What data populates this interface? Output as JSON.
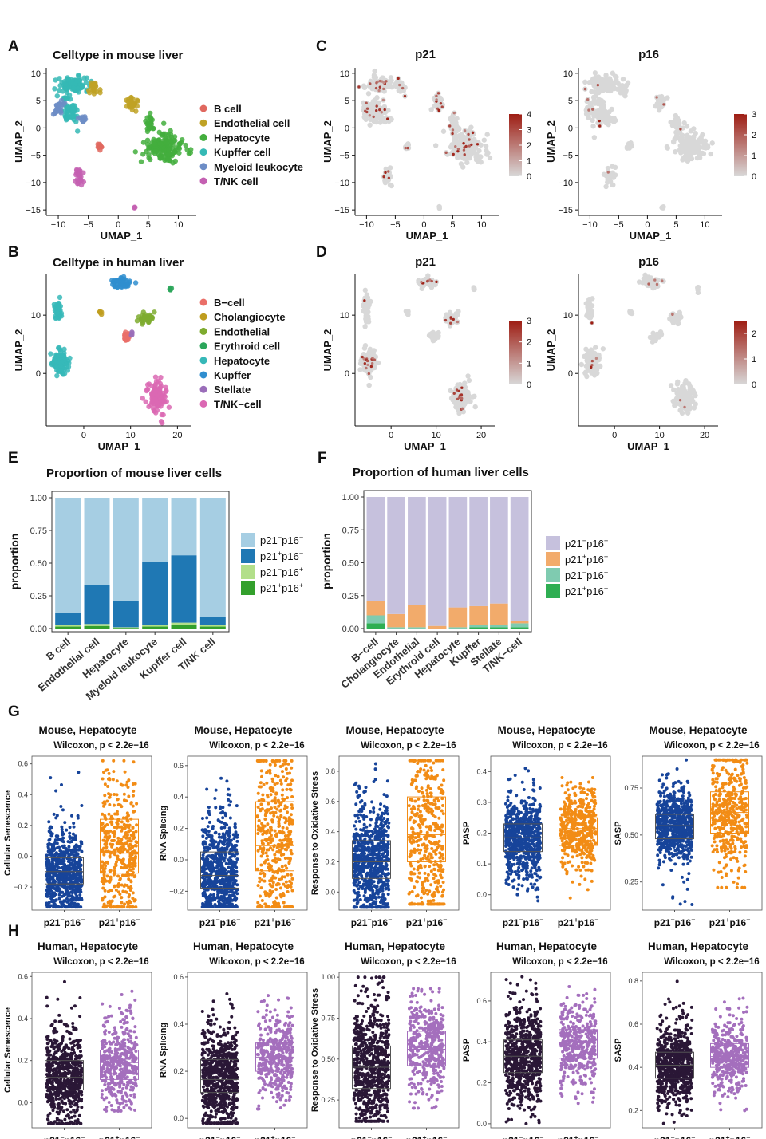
{
  "figure": {
    "panel_letters": [
      "A",
      "B",
      "C",
      "D",
      "E",
      "F",
      "G",
      "H"
    ]
  },
  "colors": {
    "mouse_types": [
      "#e0685f",
      "#bfa225",
      "#43ae3d",
      "#35b9b5",
      "#6d8dc6",
      "#c460b2"
    ],
    "human_types": [
      "#ea6f68",
      "#bf9d1e",
      "#7eab2f",
      "#2ba65b",
      "#36b8b8",
      "#2f8ecf",
      "#9a6db9",
      "#db68b3"
    ],
    "expr_low": "#d8d8d8",
    "expr_high": "#9e1d13",
    "mouse_prop": [
      "#a6cee3",
      "#1f78b4",
      "#b2df8a",
      "#33a02c"
    ],
    "human_prop": [
      "#c6c1dd",
      "#f2ab6b",
      "#7fcbb0",
      "#2eae52"
    ],
    "mouse_box": [
      "#17449a",
      "#f28c15"
    ],
    "human_box": [
      "#2a1736",
      "#a46fbd"
    ]
  },
  "chart_data": [
    {
      "id": "A",
      "type": "scatter",
      "title": "Celltype in mouse liver",
      "xlabel": "UMAP_1",
      "ylabel": "UMAP_2",
      "xticks": [
        -10,
        -5,
        0,
        5,
        10
      ],
      "yticks": [
        10,
        5,
        0,
        -5,
        -10,
        -15
      ],
      "xlim": [
        -12,
        13
      ],
      "ylim": [
        -16,
        11
      ],
      "legend": [
        "B cell",
        "Endothelial cell",
        "Hepatocyte",
        "Kupffer cell",
        "Myeloid leukocyte",
        "T/NK cell"
      ],
      "clusters": [
        {
          "group": 3,
          "cx": -7.5,
          "cy": 8,
          "sx": 2.2,
          "sy": 1.3,
          "n": 90
        },
        {
          "group": 3,
          "cx": -8,
          "cy": 3,
          "sx": 1.2,
          "sy": 2.2,
          "n": 60
        },
        {
          "group": 4,
          "cx": -10,
          "cy": 3.5,
          "sx": 0.6,
          "sy": 1.2,
          "n": 30
        },
        {
          "group": 4,
          "cx": -6,
          "cy": 1.5,
          "sx": 0.6,
          "sy": 0.5,
          "n": 12
        },
        {
          "group": 1,
          "cx": -4,
          "cy": 7.2,
          "sx": 0.6,
          "sy": 1.2,
          "n": 20
        },
        {
          "group": 1,
          "cx": 2.3,
          "cy": 4.5,
          "sx": 0.9,
          "sy": 1.0,
          "n": 28
        },
        {
          "group": 2,
          "cx": 7.5,
          "cy": -3.5,
          "sx": 2.6,
          "sy": 2.4,
          "n": 150
        },
        {
          "group": 2,
          "cx": 5.2,
          "cy": 0.5,
          "sx": 0.6,
          "sy": 1.5,
          "n": 28
        },
        {
          "group": 0,
          "cx": -3,
          "cy": -3.5,
          "sx": 0.4,
          "sy": 0.6,
          "n": 10
        },
        {
          "group": 5,
          "cx": -6.5,
          "cy": -9,
          "sx": 0.8,
          "sy": 1.2,
          "n": 26
        },
        {
          "group": 5,
          "cx": 2.7,
          "cy": -14.5,
          "sx": 0.15,
          "sy": 0.2,
          "n": 3
        }
      ]
    },
    {
      "id": "B",
      "type": "scatter",
      "title": "Celltype in human liver",
      "xlabel": "UMAP_1",
      "ylabel": "UMAP_2",
      "xticks": [
        0,
        10,
        20
      ],
      "yticks": [
        10,
        0
      ],
      "xlim": [
        -8,
        23
      ],
      "ylim": [
        -9,
        17
      ],
      "legend": [
        "B−cell",
        "Cholangiocyte",
        "Endothelial",
        "Erythroid cell",
        "Hepatocyte",
        "Kupffer",
        "Stellate",
        "T/NK−cell"
      ],
      "clusters": [
        {
          "group": 4,
          "cx": -5,
          "cy": 2,
          "sx": 1.4,
          "sy": 1.7,
          "n": 110
        },
        {
          "group": 4,
          "cx": -5.5,
          "cy": 11,
          "sx": 0.6,
          "sy": 1.8,
          "n": 40
        },
        {
          "group": 5,
          "cx": 8,
          "cy": 15.5,
          "sx": 1.8,
          "sy": 0.7,
          "n": 50
        },
        {
          "group": 1,
          "cx": 3.5,
          "cy": 10.5,
          "sx": 0.3,
          "sy": 0.3,
          "n": 6
        },
        {
          "group": 2,
          "cx": 13.5,
          "cy": 9.5,
          "sx": 1.3,
          "sy": 0.9,
          "n": 35
        },
        {
          "group": 0,
          "cx": 9.3,
          "cy": 6.2,
          "sx": 0.8,
          "sy": 0.6,
          "n": 22
        },
        {
          "group": 3,
          "cx": 18.5,
          "cy": 14.5,
          "sx": 0.2,
          "sy": 0.4,
          "n": 5
        },
        {
          "group": 6,
          "cx": 10.3,
          "cy": 6.8,
          "sx": 0.2,
          "sy": 0.3,
          "n": 4
        },
        {
          "group": 7,
          "cx": 15.5,
          "cy": -4,
          "sx": 2.0,
          "sy": 2.2,
          "n": 110
        }
      ]
    },
    {
      "id": "C1",
      "type": "scatter",
      "title": "p21",
      "xlabel": "UMAP_1",
      "ylabel": "UMAP_2",
      "xticks": [
        -10,
        -5,
        0,
        5,
        10
      ],
      "yticks": [
        10,
        5,
        0,
        -5,
        -10,
        -15
      ],
      "xlim": [
        -12,
        13
      ],
      "ylim": [
        -16,
        11
      ],
      "colorbar_ticks": [
        4,
        3,
        2,
        1,
        0
      ],
      "expression_max": 4,
      "highlight_fraction": 0.16,
      "clusters_from": "A"
    },
    {
      "id": "C2",
      "type": "scatter",
      "title": "p16",
      "xlabel": "UMAP_1",
      "ylabel": "UMAP_2",
      "xticks": [
        -10,
        -5,
        0,
        5,
        10
      ],
      "yticks": [
        10,
        5,
        0,
        -5,
        -10,
        -15
      ],
      "xlim": [
        -12,
        13
      ],
      "ylim": [
        -16,
        11
      ],
      "colorbar_ticks": [
        3,
        2,
        1,
        0
      ],
      "expression_max": 3,
      "highlight_fraction": 0.015,
      "clusters_from": "A"
    },
    {
      "id": "D1",
      "type": "scatter",
      "title": "p21",
      "xlabel": "UMAP_1",
      "ylabel": "UMAP_2",
      "xticks": [
        0,
        10,
        20
      ],
      "yticks": [
        10,
        0
      ],
      "xlim": [
        -8,
        23
      ],
      "ylim": [
        -9,
        17
      ],
      "colorbar_ticks": [
        3,
        2,
        1,
        0
      ],
      "expression_max": 3,
      "highlight_fraction": 0.1,
      "clusters_from": "B"
    },
    {
      "id": "D2",
      "type": "scatter",
      "title": "p16",
      "xlabel": "UMAP_1",
      "ylabel": "UMAP_2",
      "xticks": [
        0,
        10,
        20
      ],
      "yticks": [
        10,
        0
      ],
      "xlim": [
        -8,
        23
      ],
      "ylim": [
        -9,
        17
      ],
      "colorbar_ticks": [
        2,
        1,
        0
      ],
      "expression_max": 2.5,
      "highlight_fraction": 0.03,
      "clusters_from": "B"
    },
    {
      "id": "E",
      "type": "bar",
      "stacked": true,
      "title": "Proportion of mouse liver cells",
      "ylabel": "proportion",
      "yticks": [
        1.0,
        0.75,
        0.5,
        0.25,
        0.0
      ],
      "ytick_labels": [
        "1.00",
        "0.75",
        "0.50",
        "0.25",
        "0.00"
      ],
      "ylim": [
        0,
        1
      ],
      "categories": [
        "B cell",
        "Endothelial cell",
        "Hepatocyte",
        "Myeloid leukocyte",
        "Kupffer cell",
        "T/NK cell"
      ],
      "legend": [
        {
          "base": "p21",
          "s1": "−",
          "mid": "p16",
          "s2": "−"
        },
        {
          "base": "p21",
          "s1": "+",
          "mid": "p16",
          "s2": "−"
        },
        {
          "base": "p21",
          "s1": "−",
          "mid": "p16",
          "s2": "+"
        },
        {
          "base": "p21",
          "s1": "+",
          "mid": "p16",
          "s2": "+"
        }
      ],
      "series": [
        {
          "name": "p21+p16+",
          "values": [
            0.015,
            0.02,
            0.005,
            0.015,
            0.025,
            0.015
          ]
        },
        {
          "name": "p21-p16+",
          "values": [
            0.01,
            0.015,
            0.005,
            0.01,
            0.02,
            0.015
          ]
        },
        {
          "name": "p21+p16-",
          "values": [
            0.095,
            0.3,
            0.2,
            0.485,
            0.515,
            0.06
          ]
        },
        {
          "name": "p21-p16-",
          "values": [
            0.88,
            0.665,
            0.79,
            0.49,
            0.44,
            0.91
          ]
        }
      ]
    },
    {
      "id": "F",
      "type": "bar",
      "stacked": true,
      "title": "Proportion of human liver cells",
      "ylabel": "proportion",
      "yticks": [
        1.0,
        0.75,
        0.5,
        0.25,
        0.0
      ],
      "ytick_labels": [
        "1.00",
        "0.75",
        "0.50",
        "0.25",
        "0.00"
      ],
      "ylim": [
        0,
        1
      ],
      "categories": [
        "B−cell",
        "Cholangiocyte",
        "Endothelial",
        "Erythroid cell",
        "Hepatocyte",
        "Kupffer",
        "Stellate",
        "T/NK−cell"
      ],
      "legend": [
        {
          "base": "p21",
          "s1": "−",
          "mid": "p16",
          "s2": "−"
        },
        {
          "base": "p21",
          "s1": "+",
          "mid": "p16",
          "s2": "−"
        },
        {
          "base": "p21",
          "s1": "−",
          "mid": "p16",
          "s2": "+"
        },
        {
          "base": "p21",
          "s1": "+",
          "mid": "p16",
          "s2": "+"
        }
      ],
      "series": [
        {
          "name": "p21+p16+",
          "values": [
            0.04,
            0.0,
            0.0,
            0.0,
            0.0,
            0.01,
            0.01,
            0.01
          ]
        },
        {
          "name": "p21-p16+",
          "values": [
            0.06,
            0.01,
            0.01,
            0.0,
            0.01,
            0.02,
            0.02,
            0.03
          ]
        },
        {
          "name": "p21+p16-",
          "values": [
            0.11,
            0.1,
            0.17,
            0.02,
            0.15,
            0.14,
            0.16,
            0.02
          ]
        },
        {
          "name": "p21-p16-",
          "values": [
            0.79,
            0.89,
            0.82,
            0.98,
            0.84,
            0.83,
            0.81,
            0.94
          ]
        }
      ]
    },
    {
      "id": "G",
      "type": "box",
      "species": "Mouse",
      "panels": [
        {
          "title": "Mouse,  Hepatocyte",
          "stat": "Wilcoxon, p < 2.2e−16",
          "ylabel": "Cellular Senescence",
          "yticks": [
            0.6,
            0.4,
            0.2,
            0.0,
            -0.2
          ],
          "ytick_labels": [
            "0.6",
            "0.4",
            "0.2",
            "0.0",
            "−0.2"
          ],
          "ylim": [
            -0.35,
            0.65
          ],
          "boxes": [
            {
              "q1": -0.18,
              "median": -0.1,
              "q3": -0.01,
              "lo": -0.33,
              "hi": 0.55
            },
            {
              "q1": -0.11,
              "median": 0.02,
              "q3": 0.24,
              "lo": -0.33,
              "hi": 0.62
            }
          ]
        },
        {
          "title": "Mouse,  Hepatocyte",
          "stat": "Wilcoxon, p < 2.2e−16",
          "ylabel": "RNA Splicing",
          "yticks": [
            0.6,
            0.4,
            0.2,
            0.0,
            -0.2
          ],
          "ytick_labels": [
            "0.6",
            "0.4",
            "0.2",
            "0.0",
            "−0.2"
          ],
          "ylim": [
            -0.32,
            0.66
          ],
          "boxes": [
            {
              "q1": -0.18,
              "median": -0.1,
              "q3": 0.05,
              "lo": -0.3,
              "hi": 0.58
            },
            {
              "q1": -0.07,
              "median": 0.09,
              "q3": 0.37,
              "lo": -0.3,
              "hi": 0.63
            }
          ]
        },
        {
          "title": "Mouse,  Hepatocyte",
          "stat": "Wilcoxon, p < 2.2e−16",
          "ylabel": "Response to Oxidative Stress",
          "yticks": [
            0.8,
            0.6,
            0.4,
            0.2,
            0.0
          ],
          "ytick_labels": [
            "0.8",
            "0.6",
            "0.4",
            "0.2",
            "0.0"
          ],
          "ylim": [
            -0.12,
            0.9
          ],
          "boxes": [
            {
              "q1": 0.09,
              "median": 0.2,
              "q3": 0.34,
              "lo": -0.1,
              "hi": 0.85
            },
            {
              "q1": 0.2,
              "median": 0.38,
              "q3": 0.63,
              "lo": -0.08,
              "hi": 0.87
            }
          ]
        },
        {
          "title": "Mouse,  Hepatocyte",
          "stat": "Wilcoxon, p < 2.2e−16",
          "ylabel": "PASP",
          "yticks": [
            0.4,
            0.3,
            0.2,
            0.1,
            0.0
          ],
          "ytick_labels": [
            "0.4",
            "0.3",
            "0.2",
            "0.1",
            "0.0"
          ],
          "ylim": [
            -0.05,
            0.45
          ],
          "boxes": [
            {
              "q1": 0.14,
              "median": 0.185,
              "q3": 0.23,
              "lo": -0.02,
              "hi": 0.42
            },
            {
              "q1": 0.16,
              "median": 0.215,
              "q3": 0.25,
              "lo": -0.03,
              "hi": 0.38
            }
          ]
        },
        {
          "title": "Mouse,  Hepatocyte",
          "stat": "Wilcoxon, p < 2.2e−16",
          "ylabel": "SASP",
          "yticks": [
            0.75,
            0.5,
            0.25
          ],
          "ytick_labels": [
            "0.75",
            "0.50",
            "0.25"
          ],
          "ylim": [
            0.1,
            0.92
          ],
          "boxes": [
            {
              "q1": 0.48,
              "median": 0.55,
              "q3": 0.61,
              "lo": 0.12,
              "hi": 0.9
            },
            {
              "q1": 0.51,
              "median": 0.62,
              "q3": 0.73,
              "lo": 0.22,
              "hi": 0.9
            }
          ]
        }
      ]
    },
    {
      "id": "H",
      "type": "box",
      "species": "Human",
      "panels": [
        {
          "title": "Human,  Hepatocyte",
          "stat": "Wilcoxon, p < 2.2e−16",
          "ylabel": "Cellular Senescence",
          "yticks": [
            0.6,
            0.4,
            0.2,
            0.0
          ],
          "ytick_labels": [
            "0.6",
            "0.4",
            "0.2",
            "0.0"
          ],
          "ylim": [
            -0.12,
            0.62
          ],
          "boxes": [
            {
              "q1": 0.06,
              "median": 0.12,
              "q3": 0.2,
              "lo": -0.1,
              "hi": 0.58
            },
            {
              "q1": 0.11,
              "median": 0.19,
              "q3": 0.25,
              "lo": -0.04,
              "hi": 0.53
            }
          ]
        },
        {
          "title": "Human,  Hepatocyte",
          "stat": "Wilcoxon, p < 2.2e−16",
          "ylabel": "RNA Splicing",
          "yticks": [
            0.6,
            0.4,
            0.2,
            0.0
          ],
          "ytick_labels": [
            "0.6",
            "0.4",
            "0.2",
            "0.0"
          ],
          "ylim": [
            -0.04,
            0.62
          ],
          "boxes": [
            {
              "q1": 0.11,
              "median": 0.165,
              "q3": 0.25,
              "lo": -0.02,
              "hi": 0.59
            },
            {
              "q1": 0.2,
              "median": 0.26,
              "q3": 0.32,
              "lo": 0.04,
              "hi": 0.53
            }
          ]
        },
        {
          "title": "Human,  Hepatocyte",
          "stat": "Wilcoxon, p < 2.2e−16",
          "ylabel": "Response to Oxidative Stress",
          "yticks": [
            1.0,
            0.75,
            0.5,
            0.25
          ],
          "ytick_labels": [
            "1.00",
            "0.75",
            "0.50",
            "0.25"
          ],
          "ylim": [
            0.08,
            1.03
          ],
          "boxes": [
            {
              "q1": 0.32,
              "median": 0.45,
              "q3": 0.58,
              "lo": 0.12,
              "hi": 1.0
            },
            {
              "q1": 0.46,
              "median": 0.56,
              "q3": 0.67,
              "lo": 0.2,
              "hi": 0.93
            }
          ]
        },
        {
          "title": "Human,  Hepatocyte",
          "stat": "Wilcoxon, p < 2.2e−16",
          "ylabel": "PASP",
          "yticks": [
            0.6,
            0.4,
            0.2,
            0.0
          ],
          "ytick_labels": [
            "0.6",
            "0.4",
            "0.2",
            "0.0"
          ],
          "ylim": [
            -0.02,
            0.74
          ],
          "boxes": [
            {
              "q1": 0.25,
              "median": 0.33,
              "q3": 0.41,
              "lo": 0.0,
              "hi": 0.72
            },
            {
              "q1": 0.32,
              "median": 0.38,
              "q3": 0.46,
              "lo": 0.1,
              "hi": 0.67
            }
          ]
        },
        {
          "title": "Human,  Hepatocyte",
          "stat": "Wilcoxon, p < 2.2e−16",
          "ylabel": "SASP",
          "yticks": [
            0.8,
            0.6,
            0.4,
            0.2
          ],
          "ytick_labels": [
            "0.8",
            "0.6",
            "0.4",
            "0.2"
          ],
          "ylim": [
            0.12,
            0.84
          ],
          "boxes": [
            {
              "q1": 0.35,
              "median": 0.41,
              "q3": 0.47,
              "lo": 0.14,
              "hi": 0.82
            },
            {
              "q1": 0.4,
              "median": 0.45,
              "q3": 0.51,
              "lo": 0.2,
              "hi": 0.72
            }
          ]
        }
      ]
    }
  ]
}
